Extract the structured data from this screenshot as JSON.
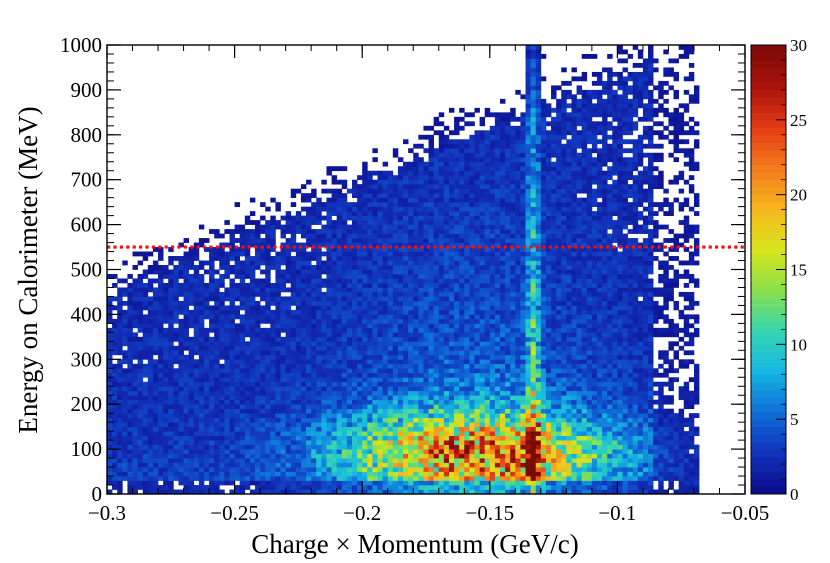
{
  "chart_data": {
    "type": "heatmap",
    "title": "",
    "xlabel": "Charge × Momentum (GeV/c)",
    "ylabel": "Energy on Calorimeter (MeV)",
    "xlim": [
      -0.3,
      -0.05
    ],
    "ylim": [
      0,
      1000
    ],
    "x_ticks": [
      -0.3,
      -0.25,
      -0.2,
      -0.15,
      -0.1,
      -0.05
    ],
    "x_tick_labels": [
      "−0.3",
      "−0.25",
      "−0.2",
      "−0.15",
      "−0.1",
      "−0.05"
    ],
    "y_ticks": [
      0,
      100,
      200,
      300,
      400,
      500,
      600,
      700,
      800,
      900,
      1000
    ],
    "y_tick_labels": [
      "0",
      "100",
      "200",
      "300",
      "400",
      "500",
      "600",
      "700",
      "800",
      "900",
      "1000"
    ],
    "colorbar": {
      "range": [
        0,
        30
      ],
      "ticks": [
        0,
        5,
        10,
        15,
        20,
        25,
        30
      ],
      "tick_labels": [
        "0",
        "5",
        "10",
        "15",
        "20",
        "25",
        "30"
      ],
      "palette": [
        "#0d0887",
        "#1133bb",
        "#0f6ed8",
        "#15b6e3",
        "#35d6b0",
        "#8be04b",
        "#d9e51c",
        "#f7b51e",
        "#f47a1c",
        "#e33a14",
        "#a8130c",
        "#7a0a05"
      ]
    },
    "bins": {
      "x_count": 125,
      "y_count": 100
    },
    "cut_line": {
      "y": 550,
      "color": "#ee1111",
      "style": "dotted"
    },
    "features": {
      "vertical_band_x": -0.133,
      "dense_region_x": [
        -0.2,
        -0.11
      ],
      "dense_region_y": [
        30,
        200
      ],
      "peak_max": 30
    }
  }
}
